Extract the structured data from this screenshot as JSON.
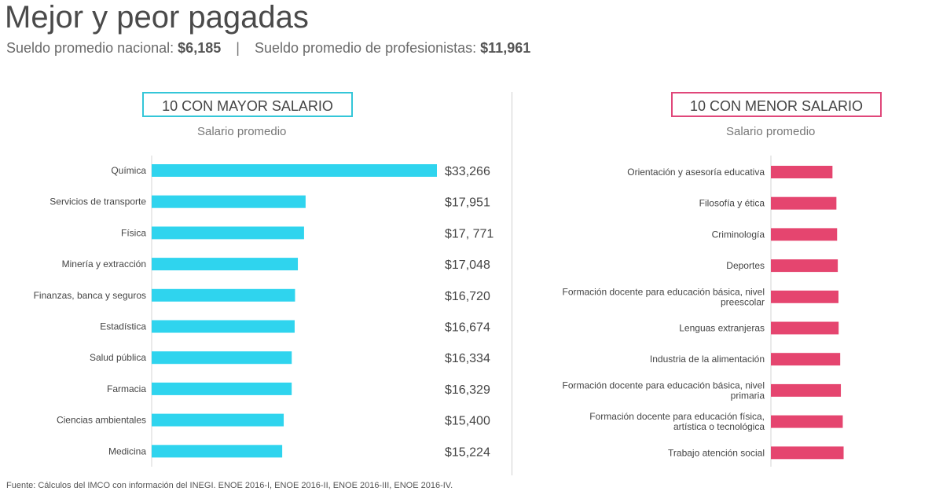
{
  "title": "Mejor y peor pagadas",
  "subtitle": {
    "national_label": "Sueldo promedio nacional:",
    "national_value": "$6,185",
    "separator": "|",
    "prof_label": "Sueldo promedio de profesionistas:",
    "prof_value": "$11,961"
  },
  "colors": {
    "top_bar": "#2fd4ee",
    "low_bar": "#e5456f",
    "top_border": "#34c6d8",
    "low_border": "#e0477a"
  },
  "footer": "Fuente: Cálculos del IMCO con información del INEGI. ENOE 2016-I, ENOE 2016-II, ENOE 2016-III, ENOE 2016-IV.",
  "chart_data": [
    {
      "type": "bar",
      "orientation": "horizontal",
      "header": "10 CON MAYOR SALARIO",
      "xlabel": "Salario promedio",
      "categories": [
        "Química",
        "Servicios de transporte",
        "Física",
        "Minería y extracción",
        "Finanzas, banca y seguros",
        "Estadística",
        "Salud pública",
        "Farmacia",
        "Ciencias ambientales",
        "Medicina"
      ],
      "values": [
        33266,
        17951,
        17771,
        17048,
        16720,
        16674,
        16334,
        16329,
        15400,
        15224
      ],
      "value_labels": [
        "$33,266",
        "$17,951",
        "$17, 771",
        "$17,048",
        "$16,720",
        "$16,674",
        "$16,334",
        "$16,329",
        "$15,400",
        "$15,224"
      ],
      "xlim": [
        0,
        33266
      ],
      "grid": false
    },
    {
      "type": "bar",
      "orientation": "horizontal",
      "header": "10 CON MENOR SALARIO",
      "xlabel": "Salario promedio",
      "categories": [
        "Orientación y asesoría educativa",
        "Filosofía y ética",
        "Criminología",
        "Deportes",
        "Formación docente para educación básica, nivel preescolar",
        "Lenguas extranjeras",
        "Industria de la alimentación",
        "Formación docente para educación básica, nivel primaria",
        "Formación docente para educación física, artística o tecnológica",
        "Trabajo atención social"
      ],
      "category_lines": [
        [
          "Orientación y asesoría educativa"
        ],
        [
          "Filosofía y ética"
        ],
        [
          "Criminología"
        ],
        [
          "Deportes"
        ],
        [
          "Formación docente para educación básica, nivel",
          "preescolar"
        ],
        [
          "Lenguas extranjeras"
        ],
        [
          "Industria de la alimentación"
        ],
        [
          "Formación docente para educación básica, nivel",
          "primaria"
        ],
        [
          "Formación docente para educación física,",
          "artística o tecnológica"
        ],
        [
          "Trabajo atención social"
        ]
      ],
      "values": [
        7180,
        7640,
        7720,
        7800,
        7880,
        7900,
        8080,
        8160,
        8380,
        8480
      ],
      "xlim": [
        0,
        33266
      ],
      "grid": false
    }
  ]
}
